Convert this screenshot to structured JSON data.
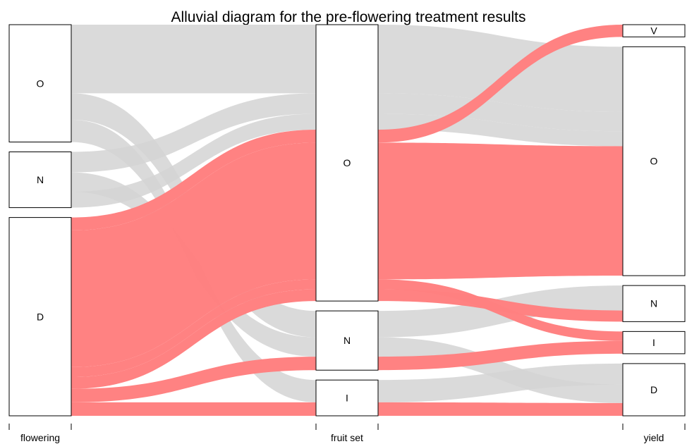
{
  "chart_data": {
    "type": "alluvial",
    "title": "Alluvial diagram for the pre-flowering treatment results",
    "axes": [
      "flowering",
      "fruit set",
      "yield"
    ],
    "categories": {
      "flowering": [
        "O",
        "N",
        "D"
      ],
      "fruit set": [
        "O",
        "N",
        "I"
      ],
      "yield": [
        "V",
        "O",
        "N",
        "I",
        "D"
      ]
    },
    "colors": {
      "highlight": "#ff7f7f",
      "other": "#d3d3d3"
    },
    "highlight_series": "D (flowering)",
    "flows": [
      {
        "flowering": "O",
        "fruit set": "O",
        "yield": "O",
        "value": 11.7
      },
      {
        "flowering": "O",
        "fruit set": "N",
        "yield": "N",
        "value": 4.5
      },
      {
        "flowering": "O",
        "fruit set": "I",
        "yield": "D",
        "value": 3.8
      },
      {
        "flowering": "N",
        "fruit set": "O",
        "yield": "O",
        "value": 3.5
      },
      {
        "flowering": "N",
        "fruit set": "N",
        "yield": "D",
        "value": 3.3
      },
      {
        "flowering": "N",
        "fruit set": "O",
        "yield": "O",
        "value": 2.7
      },
      {
        "flowering": "D",
        "fruit set": "O",
        "yield": "V",
        "value": 2.2
      },
      {
        "flowering": "D",
        "fruit set": "O",
        "yield": "O",
        "value": 23.3
      },
      {
        "flowering": "D",
        "fruit set": "O",
        "yield": "I",
        "value": 1.7
      },
      {
        "flowering": "D",
        "fruit set": "O",
        "yield": "N",
        "value": 2.0
      },
      {
        "flowering": "D",
        "fruit set": "N",
        "yield": "I",
        "value": 2.3
      },
      {
        "flowering": "D",
        "fruit set": "I",
        "yield": "D",
        "value": 2.3
      }
    ]
  }
}
